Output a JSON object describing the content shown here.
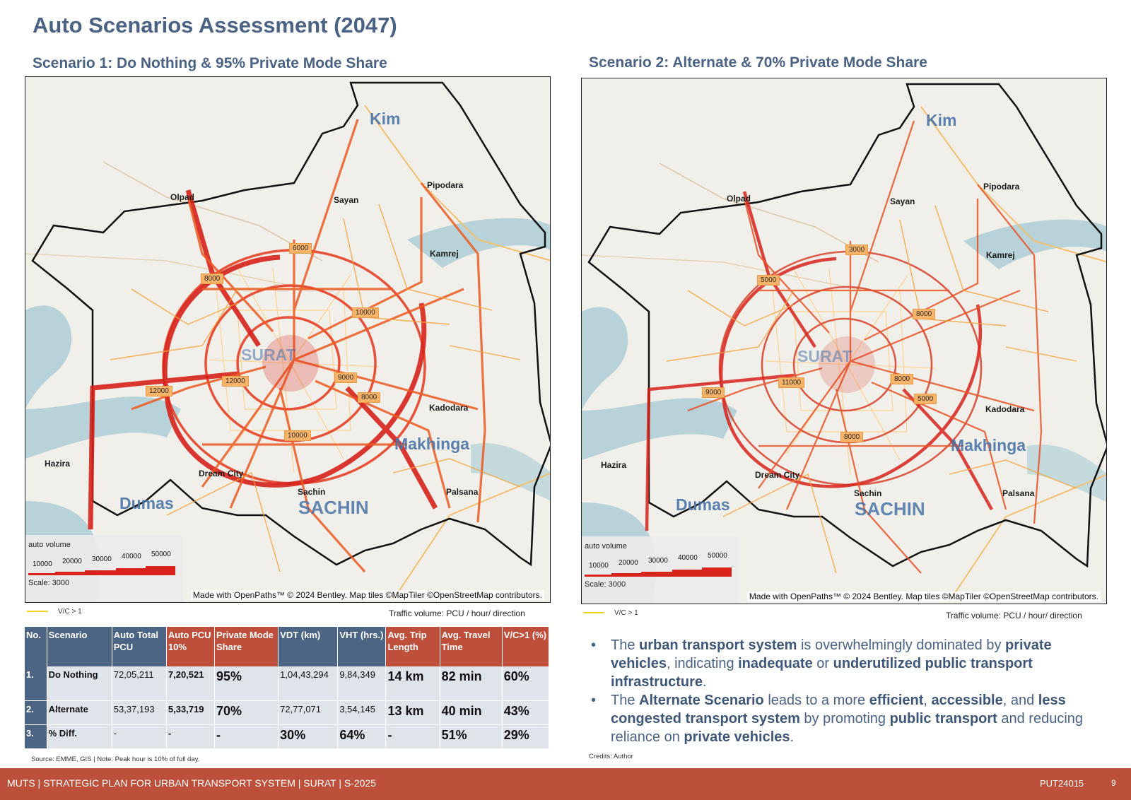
{
  "title": "Auto Scenarios Assessment (2047)",
  "scenario1": {
    "heading": "Scenario 1: Do Nothing  & 95% Private Mode Share",
    "volume_tags": [
      "6000",
      "8000",
      "10000",
      "9000",
      "8000",
      "12000",
      "12000",
      "10000"
    ]
  },
  "scenario2": {
    "heading": "Scenario 2: Alternate & 70% Private Mode Share",
    "volume_tags": [
      "3000",
      "5000",
      "8000",
      "8000",
      "5000",
      "9000",
      "11000",
      "8000"
    ]
  },
  "map_labels": {
    "kim": "Kim",
    "olpad": "Olpad",
    "sayan": "Sayan",
    "pipodara": "Pipodara",
    "kamrej": "Kamrej",
    "kadodara": "Kadodara",
    "makhinga": "Makhinga",
    "hazira": "Hazira",
    "dream_city": "Dream City",
    "sachin_small": "Sachin",
    "sachin_big": "SACHIN",
    "palsana": "Palsana",
    "dumas": "Dumas",
    "surat": "SURAT"
  },
  "legend": {
    "title": "auto volume",
    "steps": [
      "10000",
      "20000",
      "30000",
      "40000",
      "50000"
    ],
    "scale": "Scale: 3000",
    "credit": "Made with OpenPaths™ © 2024 Bentley. Map tiles ©MapTiler ©OpenStreetMap contributors.",
    "vc_label": "V/C > 1",
    "traffic_note": "Traffic volume: PCU / hour/ direction"
  },
  "colors": {
    "heading": "#4a6283",
    "table_header": "#4d6584",
    "table_accent": "#bd4f3b",
    "footer": "#bc503b",
    "flow": "#d8231c",
    "flow_light": "#f29a2e"
  },
  "table": {
    "headers": [
      "No.",
      "Scenario",
      "Auto Total PCU",
      "Auto PCU 10%",
      "Private Mode Share",
      "VDT (km)",
      "VHT (hrs.)",
      "Avg. Trip Length",
      "Avg. Travel Time",
      "V/C>1 (%)"
    ],
    "rows": [
      [
        "1.",
        "Do Nothing",
        "72,05,211",
        "7,20,521",
        "95%",
        "1,04,43,294",
        "9,84,349",
        "14 km",
        "82 min",
        "60%"
      ],
      [
        "2.",
        "Alternate",
        "53,37,193",
        "5,33,719",
        "70%",
        "72,77,071",
        "3,54,145",
        "13 km",
        "40 min",
        "43%"
      ],
      [
        "3.",
        "% Diff.",
        "-",
        "-",
        "-",
        "30%",
        "64%",
        "-",
        "51%",
        "29%"
      ]
    ]
  },
  "source_note": "Source: EMME, GIS | Note: Peak hour is 10% of full day.",
  "credits": "Credits: Author",
  "bullets": {
    "b1": {
      "p1": "The ",
      "s1": "urban transport system",
      "p2": " is overwhelmingly dominated by ",
      "s2": "private vehicles",
      "p3": ", indicating ",
      "s3": "inadequate",
      "p4": " or ",
      "s4": "underutilized public transport infrastructure",
      "p5": "."
    },
    "b2": {
      "p1": "The ",
      "s1": "Alternate Scenario",
      "p2": " leads to a more ",
      "s2": "efficient",
      "p3": ", ",
      "s3": "accessible",
      "p4": ", and ",
      "s4": "less congested transport system",
      "p5": " by promoting ",
      "s5": "public transport",
      "p6": " and reducing reliance on ",
      "s6": "private vehicles",
      "p7": "."
    }
  },
  "footer": {
    "left": "MUTS  | STRATEGIC PLAN FOR URBAN TRANSPORT SYSTEM | SURAT | S-2025",
    "code": "PUT24015",
    "page": "9"
  }
}
